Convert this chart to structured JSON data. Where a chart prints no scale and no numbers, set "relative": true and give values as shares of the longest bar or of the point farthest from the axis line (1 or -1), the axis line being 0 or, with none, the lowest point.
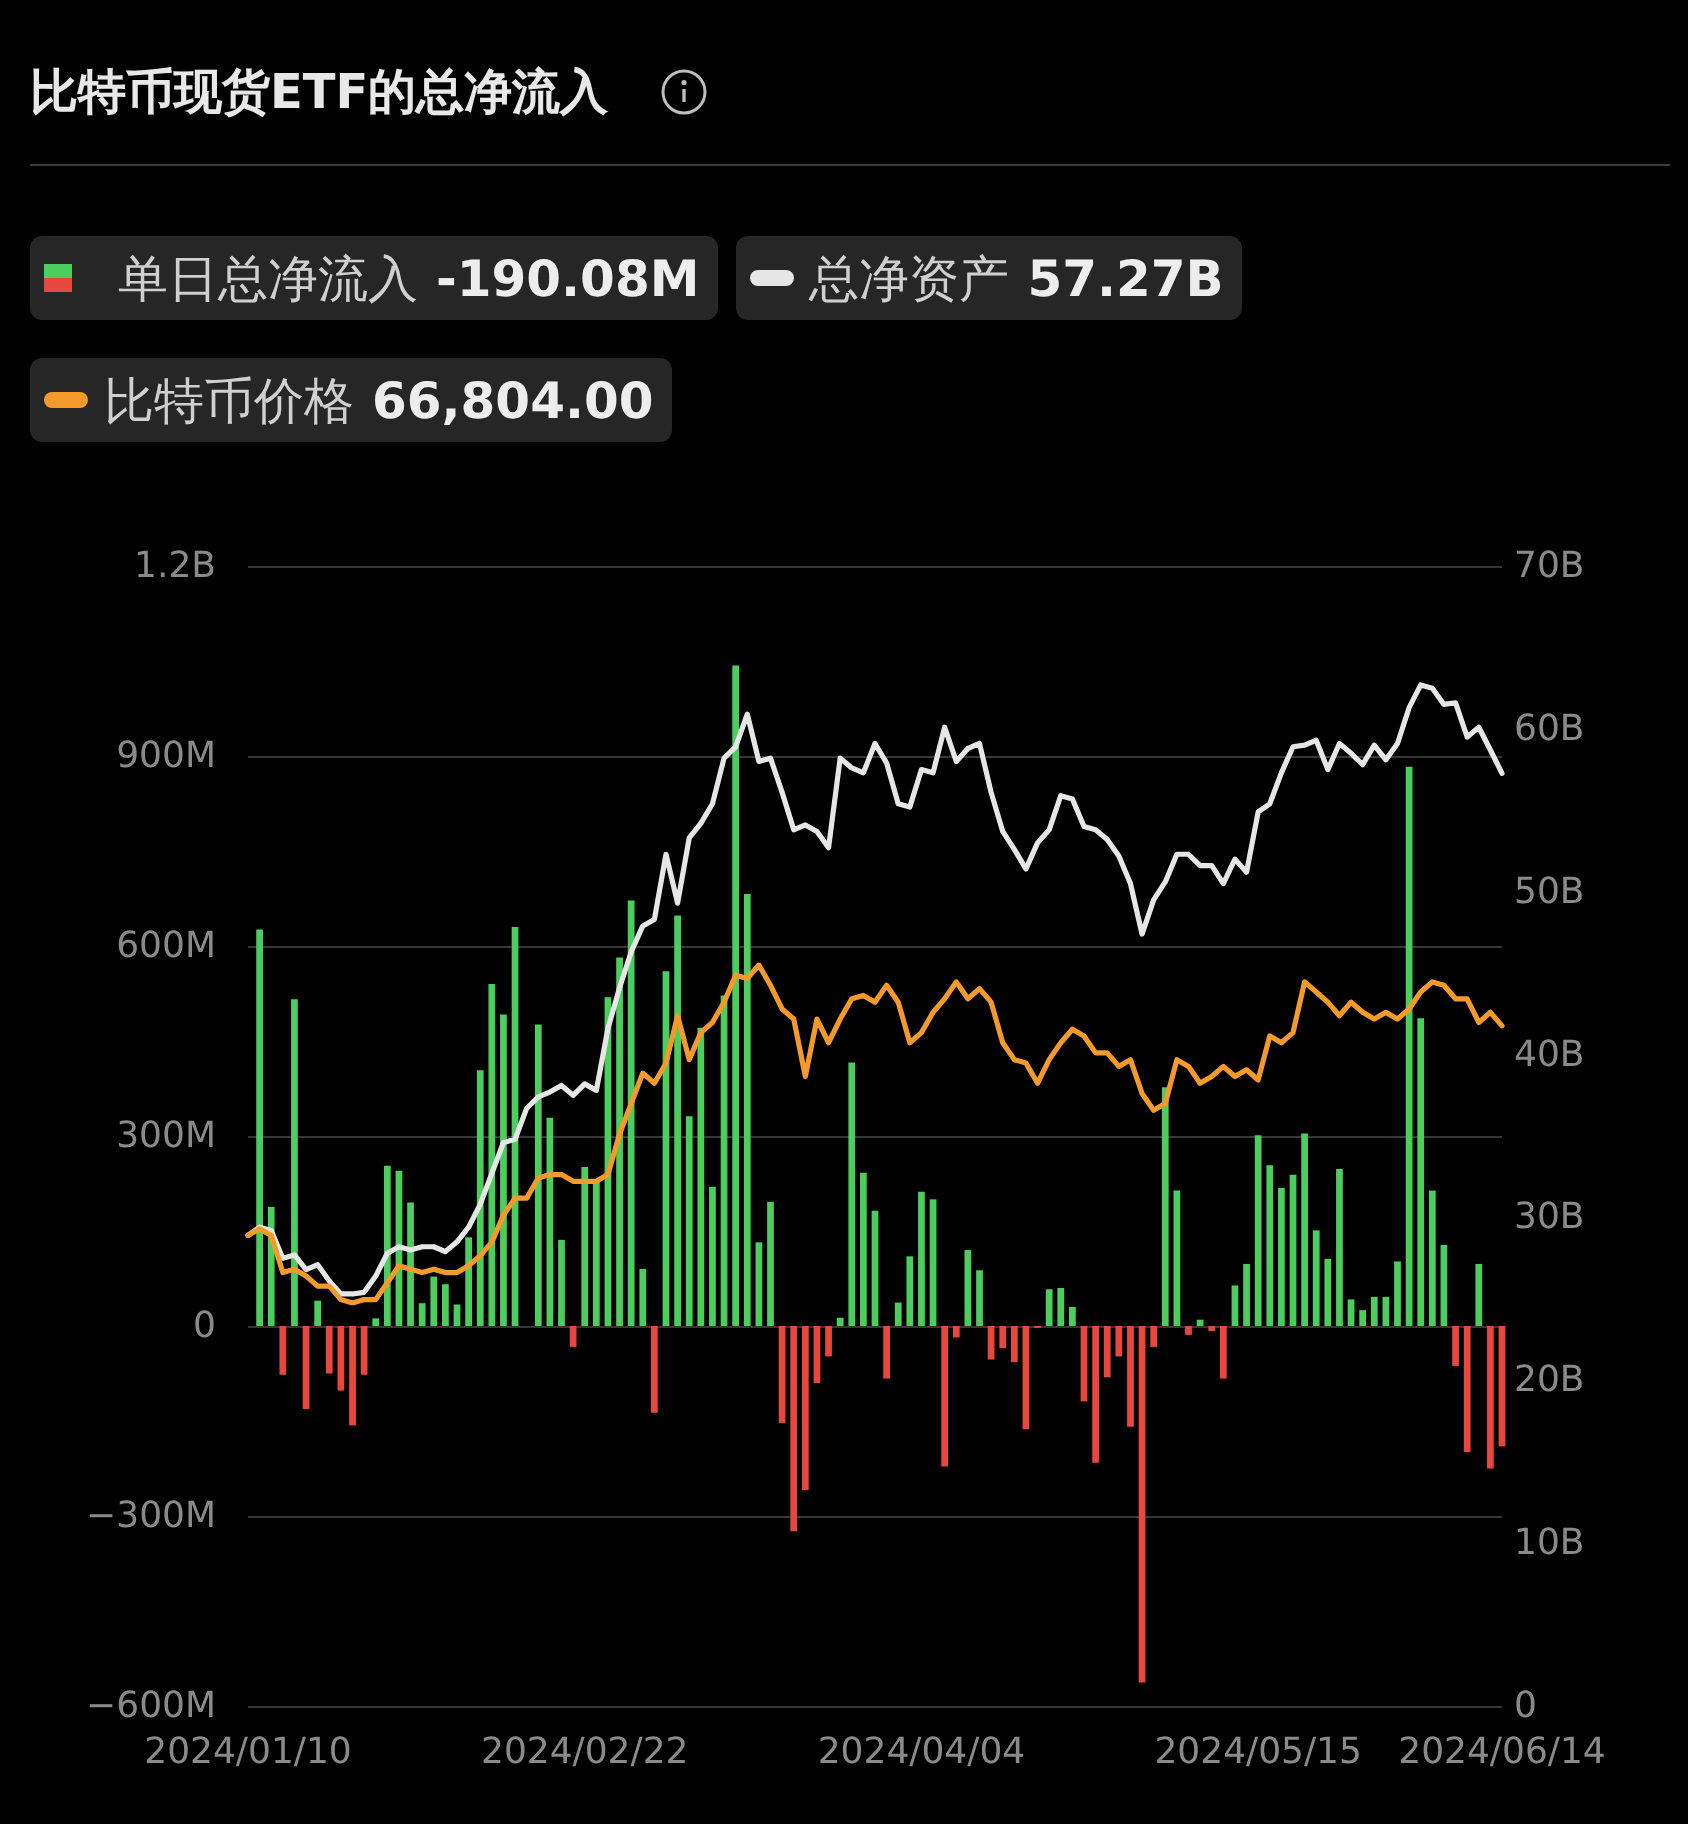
{
  "chart_data": [
    {
      "type": "bar",
      "title": "比特币现货ETF的总净流入",
      "categories": [
        "2024/01/10",
        null,
        null,
        null,
        null,
        null,
        null,
        null,
        null,
        null,
        null,
        null,
        null,
        null,
        null,
        null,
        null,
        null,
        null,
        null,
        null,
        null,
        null,
        null,
        null,
        null,
        null,
        null,
        null,
        "2024/02/22",
        null,
        null,
        null,
        null,
        null,
        null,
        null,
        null,
        null,
        null,
        null,
        null,
        null,
        null,
        null,
        null,
        null,
        null,
        null,
        null,
        null,
        null,
        null,
        null,
        null,
        null,
        null,
        null,
        "2024/04/04",
        null,
        null,
        null,
        null,
        null,
        null,
        null,
        null,
        null,
        null,
        null,
        null,
        null,
        null,
        null,
        null,
        null,
        null,
        null,
        null,
        null,
        null,
        null,
        null,
        null,
        null,
        null,
        null,
        "2024/05/15",
        null,
        null,
        null,
        null,
        null,
        null,
        null,
        null,
        null,
        null,
        null,
        null,
        null,
        null,
        null,
        null,
        null,
        null,
        null,
        null,
        "2024/06/14"
      ],
      "series": [
        {
          "name": "单日总净流入",
          "values": [
            null,
            626000000,
            188000000,
            -77000000,
            516000000,
            -131000000,
            40000000,
            -75000000,
            -102000000,
            -157000000,
            -77000000,
            12000000,
            253000000,
            245000000,
            195000000,
            36000000,
            78000000,
            66000000,
            34000000,
            140000000,
            404000000,
            540000000,
            492000000,
            630000000,
            null,
            476000000,
            329000000,
            136000000,
            -33000000,
            251000000,
            229000000,
            519000000,
            582000000,
            672000000,
            90000000,
            -137000000,
            560000000,
            648000000,
            331000000,
            471000000,
            220000000,
            522000000,
            1043000000,
            682000000,
            132000000,
            196000000,
            -153000000,
            -324000000,
            -259000000,
            -90000000,
            -48000000,
            13000000,
            416000000,
            242000000,
            182000000,
            -83000000,
            37000000,
            110000000,
            212000000,
            200000000,
            -222000000,
            -18000000,
            120000000,
            88000000,
            -53000000,
            -35000000,
            -57000000,
            -163000000,
            -3000000,
            58000000,
            60000000,
            30000000,
            -119000000,
            -216000000,
            -81000000,
            -48000000,
            -159000000,
            -563000000,
            -33000000,
            377000000,
            214000000,
            -14000000,
            10000000,
            -8000000,
            -83000000,
            64000000,
            98000000,
            301000000,
            254000000,
            218000000,
            239000000,
            304000000,
            151000000,
            106000000,
            248000000,
            42000000,
            25000000,
            46000000,
            46000000,
            102000000,
            883000000,
            486000000,
            214000000,
            128000000,
            -63000000,
            -199000000,
            98000000,
            -225000000,
            -190080000
          ],
          "colors": [
            null,
            "#4ccd5e",
            "#4ccd5e",
            "#e8473e",
            "#4ccd5e",
            "#e8473e",
            "#4ccd5e",
            "#e8473e",
            "#e8473e",
            "#e8473e",
            "#e8473e",
            "#4ccd5e",
            "#4ccd5e",
            "#4ccd5e",
            "#4ccd5e",
            "#4ccd5e",
            "#4ccd5e",
            "#4ccd5e",
            "#4ccd5e",
            "#4ccd5e",
            "#4ccd5e",
            "#4ccd5e",
            "#4ccd5e",
            "#4ccd5e",
            null,
            "#4ccd5e",
            "#4ccd5e",
            "#4ccd5e",
            "#e8473e",
            "#4ccd5e",
            "#4ccd5e",
            "#4ccd5e",
            "#4ccd5e",
            "#4ccd5e",
            "#4ccd5e",
            "#e8473e",
            "#4ccd5e",
            "#4ccd5e",
            "#4ccd5e",
            "#4ccd5e",
            "#4ccd5e",
            "#4ccd5e",
            "#4ccd5e",
            "#4ccd5e",
            "#4ccd5e",
            "#4ccd5e",
            "#e8473e",
            "#e8473e",
            "#e8473e",
            "#e8473e",
            "#e8473e",
            "#4ccd5e",
            "#4ccd5e",
            "#4ccd5e",
            "#4ccd5e",
            "#e8473e",
            "#4ccd5e",
            "#4ccd5e",
            "#4ccd5e",
            "#4ccd5e",
            "#e8473e",
            "#e8473e",
            "#4ccd5e",
            "#4ccd5e",
            "#e8473e",
            "#e8473e",
            "#e8473e",
            "#e8473e",
            "#e8473e",
            "#4ccd5e",
            "#4ccd5e",
            "#4ccd5e",
            "#e8473e",
            "#e8473e",
            "#e8473e",
            "#e8473e",
            "#e8473e",
            "#e8473e",
            "#e8473e",
            "#4ccd5e",
            "#4ccd5e",
            "#e8473e",
            "#4ccd5e",
            "#e8473e",
            "#e8473e",
            "#4ccd5e",
            "#4ccd5e",
            "#4ccd5e",
            "#4ccd5e",
            "#4ccd5e",
            "#4ccd5e",
            "#4ccd5e",
            "#4ccd5e",
            "#4ccd5e",
            "#4ccd5e",
            "#4ccd5e",
            "#4ccd5e",
            "#4ccd5e",
            "#4ccd5e",
            "#4ccd5e",
            "#4ccd5e",
            "#4ccd5e",
            "#4ccd5e",
            "#4ccd5e",
            "#e8473e",
            "#e8473e",
            "#4ccd5e",
            "#e8473e",
            "#e8473e"
          ]
        },
        {
          "name": "总净资产",
          "type": "line",
          "axis": "y2",
          "color": "#e6e6e6",
          "values": [
            28900000000,
            29400000000,
            29200000000,
            27500000000,
            27700000000,
            26800000000,
            27100000000,
            26100000000,
            25300000000,
            25300000000,
            25400000000,
            26400000000,
            27800000000,
            28200000000,
            28000000000,
            28200000000,
            28200000000,
            27900000000,
            28500000000,
            29400000000,
            30800000000,
            32700000000,
            34600000000,
            34800000000,
            36700000000,
            37400000000,
            37700000000,
            38100000000,
            37500000000,
            38200000000,
            37800000000,
            41600000000,
            44100000000,
            46300000000,
            47900000000,
            48300000000,
            52300000000,
            49300000000,
            53300000000,
            54200000000,
            55400000000,
            58200000000,
            58900000000,
            60900000000,
            58000000000,
            58200000000,
            56100000000,
            53800000000,
            54100000000,
            53700000000,
            52700000000,
            58200000000,
            57600000000,
            57300000000,
            59100000000,
            57900000000,
            55400000000,
            55200000000,
            57500000000,
            57300000000,
            60100000000,
            58000000000,
            58800000000,
            59100000000,
            56100000000,
            53700000000,
            52600000000,
            51400000000,
            53000000000,
            53800000000,
            55900000000,
            55700000000,
            54000000000,
            53800000000,
            53200000000,
            52200000000,
            50500000000,
            47400000000,
            49500000000,
            50600000000,
            52300000000,
            52300000000,
            51600000000,
            51600000000,
            50500000000,
            52000000000,
            51200000000,
            54900000000,
            55400000000,
            57300000000,
            58900000000,
            59000000000,
            59300000000,
            57500000000,
            59100000000,
            58500000000,
            57800000000,
            59000000000,
            58100000000,
            59100000000,
            61300000000,
            62700000000,
            62500000000,
            61500000000,
            61600000000,
            59500000000,
            60100000000,
            58700000000,
            57270000000
          ]
        }
      ],
      "ylim": [
        -600000000,
        1200000000
      ],
      "yticks": [
        {
          "value": -600000000,
          "label": "−600M"
        },
        {
          "value": -300000000,
          "label": "−300M"
        },
        0,
        {
          "value": 300000000,
          "label": "300M"
        },
        {
          "value": 600000000,
          "label": "600M"
        },
        {
          "value": 900000000,
          "label": "900M"
        },
        {
          "value": 1200000000,
          "label": "1.2B"
        }
      ],
      "y2lim": [
        0,
        70000000000
      ],
      "y2ticks": [
        0,
        {
          "value": 10000000000,
          "label": "10B"
        },
        {
          "value": 20000000000,
          "label": "20B"
        },
        {
          "value": 30000000000,
          "label": "30B"
        },
        {
          "value": 40000000000,
          "label": "40B"
        },
        {
          "value": 50000000000,
          "label": "50B"
        },
        {
          "value": 60000000000,
          "label": "60B"
        },
        {
          "value": 70000000000,
          "label": "70B"
        }
      ],
      "grid": "y",
      "legend": "top left",
      "annotations": [
        "-190.08M",
        "57.27B"
      ]
    },
    {
      "type": "line",
      "relative": true,
      "tick_labels": false,
      "categories": [
        "2024/01/10",
        null,
        null,
        null,
        null,
        null,
        null,
        null,
        null,
        null,
        null,
        null,
        null,
        null,
        null,
        null,
        null,
        null,
        null,
        null,
        null,
        null,
        null,
        null,
        null,
        null,
        null,
        null,
        null,
        "2024/02/22",
        null,
        null,
        null,
        null,
        null,
        null,
        null,
        null,
        null,
        null,
        null,
        null,
        null,
        null,
        null,
        null,
        null,
        null,
        null,
        null,
        null,
        null,
        null,
        null,
        null,
        null,
        null,
        null,
        "2024/04/04",
        null,
        null,
        null,
        null,
        null,
        null,
        null,
        null,
        null,
        null,
        null,
        null,
        null,
        null,
        null,
        null,
        null,
        null,
        null,
        null,
        null,
        null,
        null,
        null,
        null,
        null,
        null,
        null,
        "2024/05/15",
        null,
        null,
        null,
        null,
        null,
        null,
        null,
        null,
        null,
        null,
        null,
        null,
        null,
        null,
        null,
        null,
        null,
        null,
        null,
        null,
        "2024/06/14"
      ],
      "series": [
        {
          "name": "比特币价格",
          "color": "#f39a2b",
          "values": [
            0.2,
            0.22,
            0.2,
            0.09,
            0.1,
            0.08,
            0.05,
            0.05,
            0.01,
            0,
            0.01,
            0.01,
            0.06,
            0.11,
            0.1,
            0.09,
            0.1,
            0.09,
            0.09,
            0.11,
            0.14,
            0.18,
            0.26,
            0.31,
            0.31,
            0.37,
            0.38,
            0.38,
            0.36,
            0.36,
            0.36,
            0.38,
            0.5,
            0.59,
            0.68,
            0.65,
            0.71,
            0.85,
            0.72,
            0.8,
            0.83,
            0.89,
            0.97,
            0.96,
            1,
            0.94,
            0.87,
            0.84,
            0.67,
            0.84,
            0.77,
            0.84,
            0.9,
            0.91,
            0.89,
            0.94,
            0.89,
            0.77,
            0.8,
            0.86,
            0.9,
            0.95,
            0.9,
            0.93,
            0.89,
            0.77,
            0.72,
            0.71,
            0.65,
            0.72,
            0.77,
            0.81,
            0.79,
            0.74,
            0.74,
            0.7,
            0.72,
            0.62,
            0.57,
            0.59,
            0.72,
            0.7,
            0.65,
            0.67,
            0.7,
            0.67,
            0.69,
            0.66,
            0.79,
            0.77,
            0.8,
            0.95,
            0.92,
            0.89,
            0.85,
            0.89,
            0.86,
            0.84,
            0.86,
            0.84,
            0.87,
            0.92,
            0.95,
            0.94,
            0.9,
            0.9,
            0.83,
            0.86,
            0.82
          ]
        }
      ],
      "legend": "top left",
      "annotations": [
        "66,804.00"
      ]
    }
  ]
}
